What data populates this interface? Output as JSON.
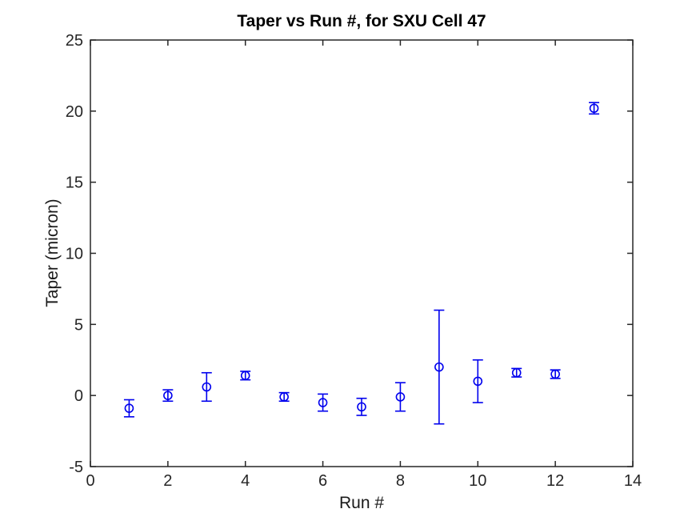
{
  "figure": {
    "background": "#ffffff"
  },
  "chart_data": {
    "type": "scatter",
    "title": "Taper vs Run #, for SXU Cell 47",
    "xlabel": "Run #",
    "ylabel": "Taper (micron)",
    "xlim": [
      0,
      14
    ],
    "ylim": [
      -5,
      25
    ],
    "xticks": [
      0,
      2,
      4,
      6,
      8,
      10,
      12,
      14
    ],
    "yticks": [
      -5,
      0,
      5,
      10,
      15,
      20,
      25
    ],
    "grid": false,
    "legend_position": "none",
    "marker": "open-circle",
    "error_bars": "vertical",
    "axis_color": "#262626",
    "text_color": "#262626",
    "title_color": "#000000",
    "marker_color": "#0000ee",
    "background": "#ffffff",
    "series": [
      {
        "name": "taper-vs-run",
        "color": "#0000ee",
        "x": [
          1,
          2,
          3,
          4,
          5,
          6,
          7,
          8,
          9,
          10,
          11,
          12,
          13
        ],
        "y": [
          -0.9,
          0.0,
          0.6,
          1.4,
          -0.1,
          -0.5,
          -0.8,
          -0.1,
          2.0,
          1.0,
          1.6,
          1.5,
          20.2
        ],
        "yerr": [
          0.6,
          0.4,
          1.0,
          0.3,
          0.3,
          0.6,
          0.6,
          1.0,
          4.0,
          1.5,
          0.3,
          0.3,
          0.4
        ]
      }
    ]
  }
}
